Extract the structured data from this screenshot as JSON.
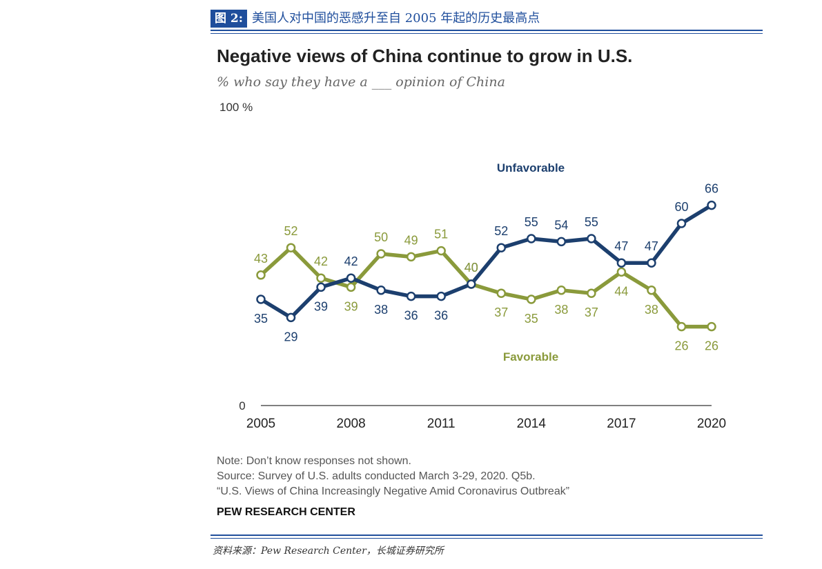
{
  "figure": {
    "number": "图 2:",
    "caption": "美国人对中国的恶感升至自 2005 年起的历史最高点",
    "source": "资料来源：Pew Research Center，长城证券研究所"
  },
  "colors": {
    "unfavorable": "#1c3f6e",
    "favorable": "#8a9a3b",
    "header": "#1f4e9c"
  },
  "chart_data": {
    "type": "line",
    "title": "Negative views of China continue to grow in U.S.",
    "subtitle": "% who say they have a ___ opinion of China",
    "y_top_label": "100 %",
    "y_zero_label": "0",
    "ylim": [
      0,
      100
    ],
    "xlim": [
      2005,
      2020
    ],
    "x": [
      2005,
      2006,
      2007,
      2008,
      2009,
      2010,
      2011,
      2012,
      2013,
      2014,
      2015,
      2016,
      2017,
      2018,
      2019,
      2020
    ],
    "x_ticks": [
      "2005",
      "2008",
      "2011",
      "2014",
      "2017",
      "2020"
    ],
    "series": [
      {
        "name": "Unfavorable",
        "values": [
          35,
          29,
          39,
          42,
          38,
          36,
          36,
          40,
          52,
          55,
          54,
          55,
          47,
          47,
          60,
          66
        ]
      },
      {
        "name": "Favorable",
        "values": [
          43,
          52,
          42,
          39,
          50,
          49,
          51,
          40,
          37,
          35,
          38,
          37,
          44,
          38,
          26,
          26
        ]
      }
    ],
    "grid": false
  },
  "notes": {
    "note": "Note: Don’t know responses not shown.",
    "source": "Source: Survey of U.S. adults conducted March 3-29, 2020. Q5b.",
    "report": "“U.S. Views of China Increasingly Negative Amid Coronavirus Outbreak”",
    "brand": "PEW RESEARCH CENTER"
  }
}
